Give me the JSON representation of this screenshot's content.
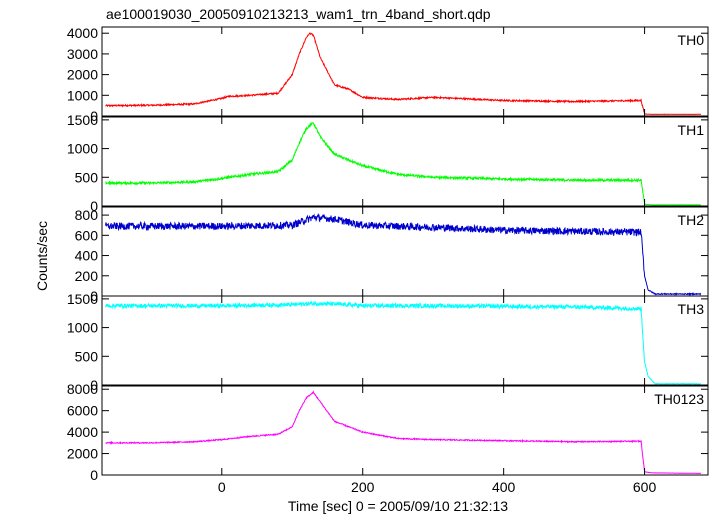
{
  "chart_data": {
    "type": "line",
    "title": "ae100019030_20050910213213_wam1_trn_4band_short.qdp",
    "xlabel": "Time [sec] 0 = 2005/09/10 21:32:13",
    "ylabel": "Counts/sec",
    "xlim": [
      -170,
      690
    ],
    "xticks": [
      0,
      200,
      400,
      600
    ],
    "xtick_labels": [
      "0",
      "200",
      "400",
      "600"
    ],
    "grid": false,
    "panels": [
      {
        "name": "TH0",
        "color": "#ff0000",
        "ylim": [
          0,
          4300
        ],
        "yticks": [
          0,
          1000,
          2000,
          3000,
          4000
        ],
        "ytick_labels": [
          "0",
          "1000",
          "2000",
          "3000",
          "4000"
        ],
        "x": [
          -165,
          -100,
          -40,
          0,
          10,
          40,
          80,
          100,
          110,
          120,
          125,
          130,
          140,
          160,
          180,
          200,
          250,
          300,
          400,
          500,
          595,
          600,
          610,
          680
        ],
        "y": [
          500,
          520,
          580,
          850,
          950,
          1000,
          1100,
          2000,
          3000,
          3800,
          4000,
          3900,
          2800,
          1500,
          1300,
          900,
          800,
          900,
          750,
          700,
          750,
          100,
          80,
          80
        ],
        "noise": 35
      },
      {
        "name": "TH1",
        "color": "#00ff00",
        "ylim": [
          0,
          1550
        ],
        "yticks": [
          0,
          500,
          1000,
          1500
        ],
        "ytick_labels": [
          "0",
          "500",
          "1000",
          "1500"
        ],
        "x": [
          -165,
          -100,
          -40,
          0,
          40,
          80,
          100,
          110,
          120,
          130,
          140,
          160,
          200,
          250,
          300,
          400,
          500,
          595,
          600,
          610,
          680
        ],
        "y": [
          400,
          400,
          420,
          480,
          550,
          600,
          800,
          1100,
          1350,
          1450,
          1200,
          900,
          700,
          550,
          500,
          470,
          450,
          450,
          30,
          20,
          20
        ],
        "noise": 20
      },
      {
        "name": "TH2",
        "color": "#0000cd",
        "ylim": [
          0,
          880
        ],
        "yticks": [
          0,
          200,
          400,
          600,
          800
        ],
        "ytick_labels": [
          "0",
          "200",
          "400",
          "600",
          "800"
        ],
        "x": [
          -165,
          0,
          100,
          130,
          160,
          200,
          300,
          400,
          500,
          595,
          600,
          605,
          615,
          680
        ],
        "y": [
          690,
          690,
          700,
          780,
          760,
          700,
          680,
          650,
          640,
          630,
          200,
          60,
          20,
          20
        ],
        "noise": 35
      },
      {
        "name": "TH3",
        "color": "#00ffff",
        "ylim": [
          0,
          1550
        ],
        "yticks": [
          0,
          500,
          1000,
          1500
        ],
        "ytick_labels": [
          "0",
          "500",
          "1000",
          "1500"
        ],
        "x": [
          -165,
          0,
          100,
          130,
          160,
          200,
          300,
          400,
          500,
          595,
          600,
          605,
          615,
          680
        ],
        "y": [
          1380,
          1380,
          1400,
          1420,
          1410,
          1380,
          1380,
          1370,
          1360,
          1330,
          400,
          150,
          20,
          20
        ],
        "noise": 35
      },
      {
        "name": "TH0123",
        "color": "#ff00ff",
        "ylim": [
          0,
          8300
        ],
        "yticks": [
          0,
          2000,
          4000,
          6000,
          8000
        ],
        "ytick_labels": [
          "0",
          "2000",
          "4000",
          "6000",
          "8000"
        ],
        "x": [
          -165,
          -100,
          -40,
          0,
          40,
          80,
          100,
          110,
          120,
          130,
          140,
          160,
          200,
          250,
          300,
          400,
          500,
          595,
          600,
          610,
          680
        ],
        "y": [
          3000,
          3000,
          3100,
          3300,
          3600,
          3800,
          4500,
          6000,
          7200,
          7700,
          6800,
          5000,
          4000,
          3400,
          3300,
          3200,
          3100,
          3150,
          300,
          200,
          150
        ],
        "noise": 50
      }
    ]
  }
}
